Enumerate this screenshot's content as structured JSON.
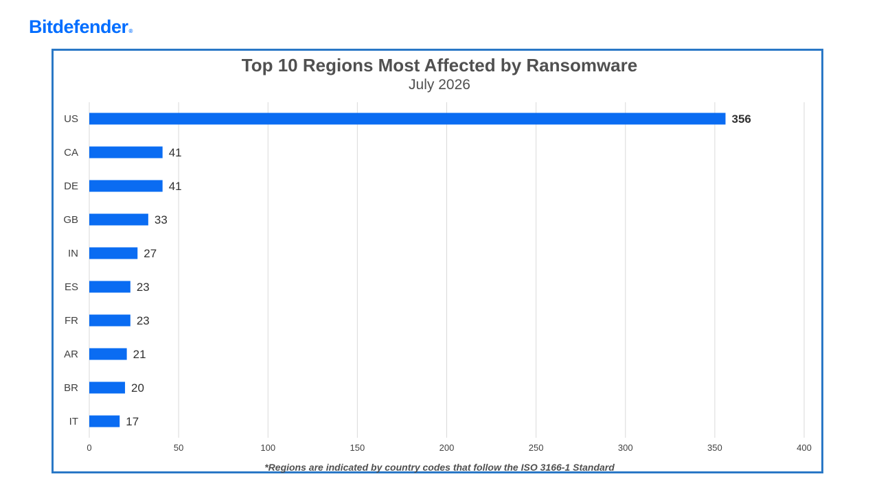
{
  "brand": {
    "name": "Bitdefender",
    "mark": "®",
    "color": "#006dff"
  },
  "chart_data": {
    "type": "bar",
    "orientation": "horizontal",
    "title": "Top 10 Regions Most Affected by Ransomware",
    "subtitle": "July 2026",
    "categories": [
      "US",
      "CA",
      "DE",
      "GB",
      "IN",
      "ES",
      "FR",
      "AR",
      "BR",
      "IT"
    ],
    "values": [
      356,
      41,
      41,
      33,
      27,
      23,
      23,
      21,
      20,
      17
    ],
    "xlim": [
      0,
      400
    ],
    "ticks": [
      0,
      50,
      100,
      150,
      200,
      250,
      300,
      350,
      400
    ],
    "grid": "vertical",
    "bar_color": "#0a6cf2",
    "frame_color": "#2a78c6",
    "footnote": "*Regions are indicated by country codes that follow the ISO 3166-1 Standard"
  }
}
